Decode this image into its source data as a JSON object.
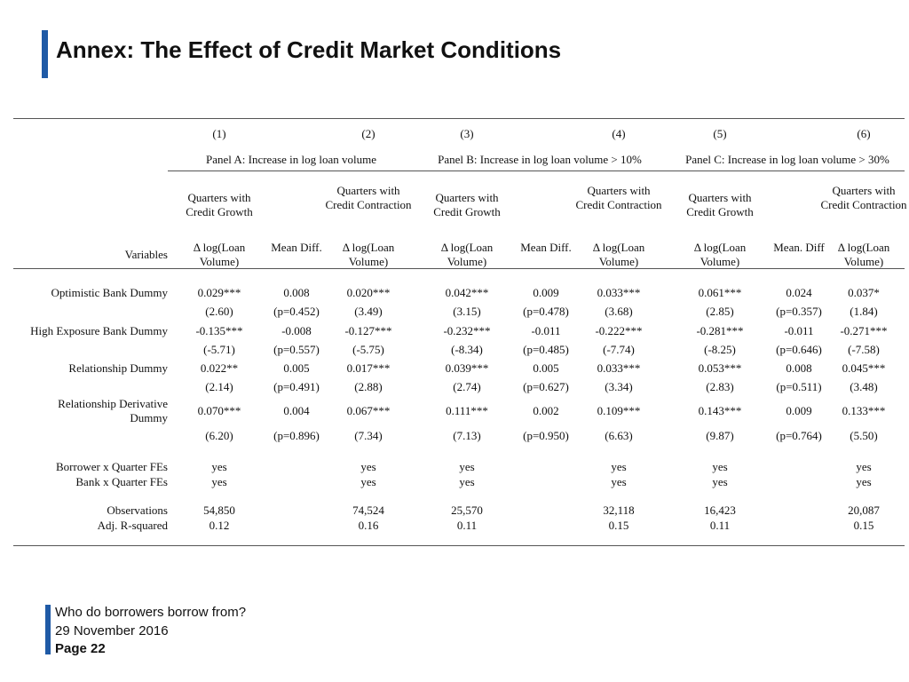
{
  "title": "Annex: The Effect of Credit Market Conditions",
  "table": {
    "col_numbers": [
      "(1)",
      "(2)",
      "(3)",
      "(4)",
      "(5)",
      "(6)"
    ],
    "panels": [
      "Panel A: Increase in log loan volume",
      "Panel B: Increase in log loan volume > 10%",
      "Panel C: Increase in log loan volume > 30%"
    ],
    "group_headers": [
      "Quarters with Credit Growth",
      "Quarters with Credit Contraction",
      "Quarters with Credit Growth",
      "Quarters with Credit Contraction",
      "Quarters with Credit Growth",
      "Quarters with Credit Contraction"
    ],
    "variables_label": "Variables",
    "var_headers": [
      "Δ log(Loan Volume)",
      "Mean Diff.",
      "Δ log(Loan Volume)",
      "Δ log(Loan Volume)",
      "Mean Diff.",
      "Δ log(Loan Volume)",
      "Δ log(Loan Volume)",
      "Mean. Diff",
      "Δ log(Loan Volume)"
    ],
    "rows": [
      {
        "label": "Optimistic Bank Dummy",
        "coef": [
          "0.029***",
          "0.008",
          "0.020***",
          "0.042***",
          "0.009",
          "0.033***",
          "0.061***",
          "0.024",
          "0.037*"
        ],
        "se": [
          "(2.60)",
          "(p=0.452)",
          "(3.49)",
          "(3.15)",
          "(p=0.478)",
          "(3.68)",
          "(2.85)",
          "(p=0.357)",
          "(1.84)"
        ]
      },
      {
        "label": "High Exposure Bank Dummy",
        "coef": [
          "-0.135***",
          "-0.008",
          "-0.127***",
          "-0.232***",
          "-0.011",
          "-0.222***",
          "-0.281***",
          "-0.011",
          "-0.271***"
        ],
        "se": [
          "(-5.71)",
          "(p=0.557)",
          "(-5.75)",
          "(-8.34)",
          "(p=0.485)",
          "(-7.74)",
          "(-8.25)",
          "(p=0.646)",
          "(-7.58)"
        ]
      },
      {
        "label": "Relationship Dummy",
        "coef": [
          "0.022**",
          "0.005",
          "0.017***",
          "0.039***",
          "0.005",
          "0.033***",
          "0.053***",
          "0.008",
          "0.045***"
        ],
        "se": [
          "(2.14)",
          "(p=0.491)",
          "(2.88)",
          "(2.74)",
          "(p=0.627)",
          "(3.34)",
          "(2.83)",
          "(p=0.511)",
          "(3.48)"
        ]
      },
      {
        "label": "Relationship Derivative Dummy",
        "coef": [
          "0.070***",
          "0.004",
          "0.067***",
          "0.111***",
          "0.002",
          "0.109***",
          "0.143***",
          "0.009",
          "0.133***"
        ],
        "se": [
          "(6.20)",
          "(p=0.896)",
          "(7.34)",
          "(7.13)",
          "(p=0.950)",
          "(6.63)",
          "(9.87)",
          "(p=0.764)",
          "(5.50)"
        ]
      }
    ],
    "fe_rows": [
      {
        "label": "Borrower x Quarter FEs",
        "values": [
          "yes",
          "",
          "yes",
          "yes",
          "",
          "yes",
          "yes",
          "",
          "yes"
        ]
      },
      {
        "label": "Bank x Quarter FEs",
        "values": [
          "yes",
          "",
          "yes",
          "yes",
          "",
          "yes",
          "yes",
          "",
          "yes"
        ]
      }
    ],
    "stat_rows": [
      {
        "label": "Observations",
        "values": [
          "54,850",
          "",
          "74,524",
          "25,570",
          "",
          "32,118",
          "16,423",
          "",
          "20,087"
        ]
      },
      {
        "label": "Adj. R-squared",
        "values": [
          "0.12",
          "",
          "0.16",
          "0.11",
          "",
          "0.15",
          "0.11",
          "",
          "0.15"
        ]
      }
    ]
  },
  "footer": {
    "line1": "Who do borrowers borrow from?",
    "line2": "29 November 2016",
    "line3": "Page 22"
  }
}
